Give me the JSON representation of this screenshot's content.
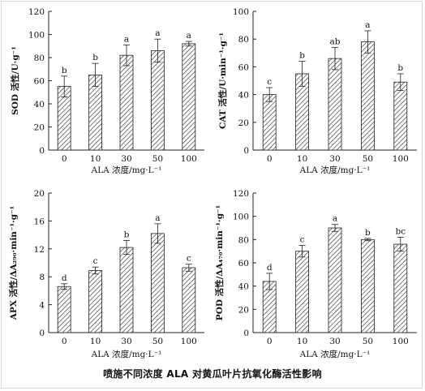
{
  "caption": "喷施不同浓度 ALA 对黄瓜叶片抗氧化酶活性影响",
  "style": {
    "bar_fill": "#ffffff",
    "hatch": "#333333",
    "axis": "#222222"
  },
  "chart_data": [
    {
      "type": "bar",
      "ylabel": "SOD 活性/U·g⁻¹",
      "xlabel": "ALA 浓度/mg·L⁻¹",
      "categories": [
        "0",
        "10",
        "30",
        "50",
        "100"
      ],
      "values": [
        55,
        65,
        82,
        86,
        92
      ],
      "errors": [
        9,
        10,
        9,
        10,
        2
      ],
      "labels": [
        "b",
        "b",
        "a",
        "a",
        "a"
      ],
      "ylim": [
        0,
        120
      ],
      "yticks": [
        0,
        20,
        40,
        60,
        80,
        100,
        120
      ]
    },
    {
      "type": "bar",
      "ylabel": "CAT 活性/U·min⁻¹·g⁻¹",
      "xlabel": "ALA 浓度/mg·L⁻¹",
      "categories": [
        "0",
        "10",
        "30",
        "50",
        "100"
      ],
      "values": [
        40,
        55,
        66,
        78,
        49
      ],
      "errors": [
        5,
        9,
        8,
        8,
        6
      ],
      "labels": [
        "c",
        "b",
        "ab",
        "a",
        "b"
      ],
      "ylim": [
        0,
        100
      ],
      "yticks": [
        0,
        20,
        40,
        60,
        80,
        100
      ]
    },
    {
      "type": "bar",
      "ylabel": "APX 活性/ΔA₂₉₀·min⁻¹·g⁻¹",
      "xlabel": "ALA 浓度/mg·L⁻¹",
      "categories": [
        "0",
        "10",
        "30",
        "50",
        "100"
      ],
      "values": [
        6.6,
        8.9,
        12.2,
        14.2,
        9.3
      ],
      "errors": [
        0.4,
        0.5,
        1.0,
        1.4,
        0.5
      ],
      "labels": [
        "d",
        "c",
        "b",
        "a",
        "c"
      ],
      "ylim": [
        0,
        20
      ],
      "yticks": [
        0,
        4,
        8,
        12,
        16,
        20
      ]
    },
    {
      "type": "bar",
      "ylabel": "POD 活性/ΔA₄₇₀·min⁻¹·g⁻¹",
      "xlabel": "ALA 浓度/mg·L⁻¹",
      "categories": [
        "0",
        "10",
        "30",
        "50",
        "100"
      ],
      "values": [
        44,
        70,
        90,
        80,
        76
      ],
      "errors": [
        7,
        5,
        3,
        1,
        6
      ],
      "labels": [
        "d",
        "c",
        "a",
        "b",
        "bc"
      ],
      "ylim": [
        0,
        120
      ],
      "yticks": [
        0,
        20,
        40,
        60,
        80,
        100,
        120
      ]
    }
  ]
}
